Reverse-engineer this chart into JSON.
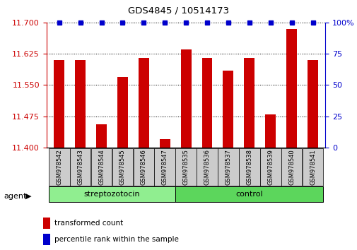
{
  "title": "GDS4845 / 10514173",
  "samples": [
    "GSM978542",
    "GSM978543",
    "GSM978544",
    "GSM978545",
    "GSM978546",
    "GSM978547",
    "GSM978535",
    "GSM978536",
    "GSM978537",
    "GSM978538",
    "GSM978539",
    "GSM978540",
    "GSM978541"
  ],
  "bar_values": [
    11.61,
    11.61,
    11.455,
    11.57,
    11.615,
    11.42,
    11.635,
    11.615,
    11.585,
    11.615,
    11.48,
    11.685,
    11.61
  ],
  "percentile_values": [
    100,
    100,
    100,
    100,
    100,
    100,
    100,
    100,
    100,
    100,
    100,
    100,
    100
  ],
  "bar_color": "#cc0000",
  "dot_color": "#0000cc",
  "ylim_left": [
    11.4,
    11.7
  ],
  "ylim_right": [
    0,
    100
  ],
  "yticks_left": [
    11.4,
    11.475,
    11.55,
    11.625,
    11.7
  ],
  "yticks_right": [
    0,
    25,
    50,
    75,
    100
  ],
  "groups": [
    {
      "label": "streptozotocin",
      "start": 0,
      "end": 6,
      "color": "#90ee90"
    },
    {
      "label": "control",
      "start": 6,
      "end": 13,
      "color": "#5cd65c"
    }
  ],
  "agent_label": "agent",
  "legend_bar_label": "transformed count",
  "legend_dot_label": "percentile rank within the sample",
  "background_color": "#ffffff",
  "left_axis_color": "#cc0000",
  "right_axis_color": "#0000cc",
  "plot_facecolor": "#ffffff",
  "gray_box_color": "#cccccc",
  "arrow_symbol": "▶"
}
